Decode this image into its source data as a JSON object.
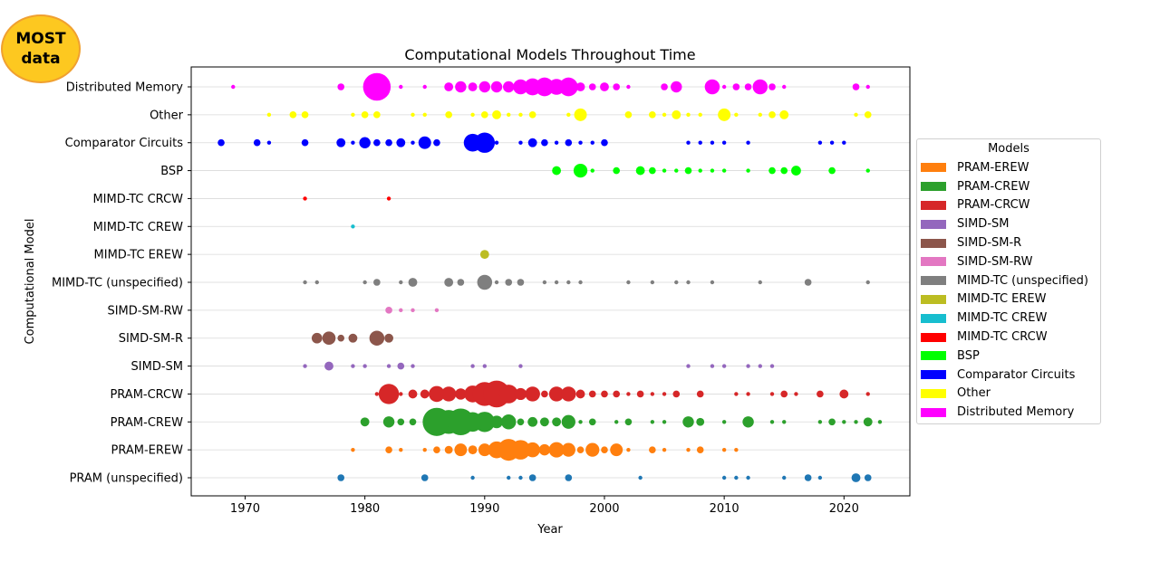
{
  "badge": {
    "line1": "MOST",
    "line2": "data"
  },
  "chart_data": {
    "type": "scatter",
    "title": "Computational Models Throughout Time",
    "xlabel": "Year",
    "ylabel": "Computational Model",
    "xlim": [
      1965.5,
      2025.5
    ],
    "xticks": [
      1970,
      1980,
      1990,
      2000,
      2010,
      2020
    ],
    "grid": "horizontal",
    "legend_title": "Models",
    "legend_position": "outside-right",
    "categories": [
      "PRAM (unspecified)",
      "PRAM-EREW",
      "PRAM-CREW",
      "PRAM-CRCW",
      "SIMD-SM",
      "SIMD-SM-R",
      "SIMD-SM-RW",
      "MIMD-TC (unspecified)",
      "MIMD-TC EREW",
      "MIMD-TC CREW",
      "MIMD-TC CRCW",
      "BSP",
      "Comparator Circuits",
      "Other",
      "Distributed Memory"
    ],
    "legend": [
      {
        "label": "PRAM-EREW",
        "color": "#ff7f0e"
      },
      {
        "label": "PRAM-CREW",
        "color": "#2ca02c"
      },
      {
        "label": "PRAM-CRCW",
        "color": "#d62728"
      },
      {
        "label": "SIMD-SM",
        "color": "#9467bd"
      },
      {
        "label": "SIMD-SM-R",
        "color": "#8c564b"
      },
      {
        "label": "SIMD-SM-RW",
        "color": "#e377c2"
      },
      {
        "label": "MIMD-TC (unspecified)",
        "color": "#7f7f7f"
      },
      {
        "label": "MIMD-TC EREW",
        "color": "#bcbd22"
      },
      {
        "label": "MIMD-TC CREW",
        "color": "#17becf"
      },
      {
        "label": "MIMD-TC CRCW",
        "color": "#ff0000"
      },
      {
        "label": "BSP",
        "color": "#00ff00"
      },
      {
        "label": "Comparator Circuits",
        "color": "#0000ff"
      },
      {
        "label": "Other",
        "color": "#ffff00"
      },
      {
        "label": "Distributed Memory",
        "color": "#ff00ff"
      }
    ],
    "series": [
      {
        "category": "PRAM (unspecified)",
        "color": "#1f77b4",
        "points": [
          [
            1978,
            3
          ],
          [
            1985,
            3
          ],
          [
            1989,
            1
          ],
          [
            1992,
            1
          ],
          [
            1993,
            1
          ],
          [
            1994,
            3
          ],
          [
            1997,
            3
          ],
          [
            2003,
            1
          ],
          [
            2010,
            1
          ],
          [
            2011,
            1
          ],
          [
            2012,
            1
          ],
          [
            2015,
            1
          ],
          [
            2017,
            3
          ],
          [
            2018,
            1
          ],
          [
            2021,
            5
          ],
          [
            2022,
            3
          ]
        ]
      },
      {
        "category": "PRAM-EREW",
        "color": "#ff7f0e",
        "points": [
          [
            1979,
            1
          ],
          [
            1982,
            3
          ],
          [
            1983,
            1
          ],
          [
            1985,
            1
          ],
          [
            1986,
            3
          ],
          [
            1987,
            4
          ],
          [
            1988,
            10
          ],
          [
            1989,
            5
          ],
          [
            1990,
            10
          ],
          [
            1991,
            18
          ],
          [
            1992,
            30
          ],
          [
            1993,
            24
          ],
          [
            1994,
            14
          ],
          [
            1995,
            8
          ],
          [
            1996,
            15
          ],
          [
            1997,
            12
          ],
          [
            1998,
            3
          ],
          [
            1999,
            12
          ],
          [
            2000,
            3
          ],
          [
            2001,
            10
          ],
          [
            2002,
            1
          ],
          [
            2004,
            3
          ],
          [
            2005,
            1
          ],
          [
            2007,
            1
          ],
          [
            2008,
            3
          ],
          [
            2010,
            1
          ],
          [
            2011,
            1
          ]
        ]
      },
      {
        "category": "PRAM-CREW",
        "color": "#2ca02c",
        "points": [
          [
            1980,
            5
          ],
          [
            1982,
            8
          ],
          [
            1983,
            3
          ],
          [
            1984,
            3
          ],
          [
            1986,
            50
          ],
          [
            1987,
            36
          ],
          [
            1988,
            45
          ],
          [
            1989,
            24
          ],
          [
            1990,
            26
          ],
          [
            1991,
            10
          ],
          [
            1992,
            14
          ],
          [
            1993,
            3
          ],
          [
            1994,
            6
          ],
          [
            1995,
            5
          ],
          [
            1996,
            5
          ],
          [
            1997,
            12
          ],
          [
            1998,
            1
          ],
          [
            1999,
            3
          ],
          [
            2001,
            1
          ],
          [
            2002,
            3
          ],
          [
            2004,
            1
          ],
          [
            2005,
            1
          ],
          [
            2007,
            8
          ],
          [
            2008,
            4
          ],
          [
            2010,
            1
          ],
          [
            2012,
            8
          ],
          [
            2014,
            1
          ],
          [
            2015,
            1
          ],
          [
            2018,
            1
          ],
          [
            2019,
            3
          ],
          [
            2020,
            1
          ],
          [
            2021,
            1
          ],
          [
            2022,
            5
          ],
          [
            2023,
            1
          ]
        ]
      },
      {
        "category": "PRAM-CRCW",
        "color": "#d62728",
        "points": [
          [
            1981,
            1
          ],
          [
            1982,
            26
          ],
          [
            1983,
            1
          ],
          [
            1984,
            5
          ],
          [
            1985,
            5
          ],
          [
            1986,
            16
          ],
          [
            1987,
            14
          ],
          [
            1988,
            8
          ],
          [
            1989,
            18
          ],
          [
            1990,
            36
          ],
          [
            1991,
            45
          ],
          [
            1992,
            22
          ],
          [
            1993,
            9
          ],
          [
            1994,
            14
          ],
          [
            1995,
            3
          ],
          [
            1996,
            14
          ],
          [
            1997,
            14
          ],
          [
            1998,
            5
          ],
          [
            1999,
            3
          ],
          [
            2000,
            3
          ],
          [
            2001,
            3
          ],
          [
            2002,
            1
          ],
          [
            2003,
            3
          ],
          [
            2004,
            1
          ],
          [
            2005,
            1
          ],
          [
            2006,
            3
          ],
          [
            2008,
            3
          ],
          [
            2011,
            1
          ],
          [
            2012,
            1
          ],
          [
            2014,
            1
          ],
          [
            2015,
            3
          ],
          [
            2016,
            1
          ],
          [
            2018,
            3
          ],
          [
            2020,
            5
          ],
          [
            2022,
            1
          ]
        ]
      },
      {
        "category": "SIMD-SM",
        "color": "#9467bd",
        "points": [
          [
            1975,
            1
          ],
          [
            1977,
            5
          ],
          [
            1979,
            1
          ],
          [
            1980,
            1
          ],
          [
            1982,
            1
          ],
          [
            1983,
            3
          ],
          [
            1984,
            1
          ],
          [
            1989,
            1
          ],
          [
            1990,
            1
          ],
          [
            1993,
            1
          ],
          [
            2007,
            1
          ],
          [
            2009,
            1
          ],
          [
            2010,
            1
          ],
          [
            2012,
            1
          ],
          [
            2013,
            1
          ],
          [
            2014,
            1
          ]
        ]
      },
      {
        "category": "SIMD-SM-R",
        "color": "#8c564b",
        "points": [
          [
            1976,
            7
          ],
          [
            1977,
            11
          ],
          [
            1978,
            3
          ],
          [
            1979,
            5
          ],
          [
            1981,
            14
          ],
          [
            1982,
            5
          ]
        ]
      },
      {
        "category": "SIMD-SM-RW",
        "color": "#e377c2",
        "points": [
          [
            1982,
            3
          ],
          [
            1983,
            1
          ],
          [
            1984,
            1
          ],
          [
            1986,
            1
          ]
        ]
      },
      {
        "category": "MIMD-TC (unspecified)",
        "color": "#7f7f7f",
        "points": [
          [
            1975,
            1
          ],
          [
            1976,
            1
          ],
          [
            1980,
            1
          ],
          [
            1981,
            3
          ],
          [
            1983,
            1
          ],
          [
            1984,
            5
          ],
          [
            1987,
            5
          ],
          [
            1988,
            3
          ],
          [
            1990,
            14
          ],
          [
            1991,
            1
          ],
          [
            1992,
            3
          ],
          [
            1993,
            3
          ],
          [
            1995,
            1
          ],
          [
            1996,
            1
          ],
          [
            1997,
            1
          ],
          [
            1998,
            1
          ],
          [
            2002,
            1
          ],
          [
            2004,
            1
          ],
          [
            2006,
            1
          ],
          [
            2007,
            1
          ],
          [
            2009,
            1
          ],
          [
            2013,
            1
          ],
          [
            2017,
            3
          ],
          [
            2022,
            1
          ]
        ]
      },
      {
        "category": "MIMD-TC EREW",
        "color": "#bcbd22",
        "points": [
          [
            1990,
            5
          ]
        ]
      },
      {
        "category": "MIMD-TC CREW",
        "color": "#17becf",
        "points": [
          [
            1979,
            1
          ]
        ]
      },
      {
        "category": "MIMD-TC CRCW",
        "color": "#ff0000",
        "points": [
          [
            1975,
            1
          ],
          [
            1982,
            1
          ]
        ]
      },
      {
        "category": "BSP",
        "color": "#00ff00",
        "points": [
          [
            1996,
            5
          ],
          [
            1998,
            12
          ],
          [
            1999,
            1
          ],
          [
            2001,
            3
          ],
          [
            2003,
            5
          ],
          [
            2004,
            3
          ],
          [
            2005,
            1
          ],
          [
            2006,
            1
          ],
          [
            2007,
            3
          ],
          [
            2008,
            1
          ],
          [
            2009,
            1
          ],
          [
            2010,
            1
          ],
          [
            2012,
            1
          ],
          [
            2014,
            3
          ],
          [
            2015,
            3
          ],
          [
            2016,
            6
          ],
          [
            2019,
            3
          ],
          [
            2022,
            1
          ]
        ]
      },
      {
        "category": "Comparator Circuits",
        "color": "#0000ff",
        "points": [
          [
            1968,
            3
          ],
          [
            1971,
            3
          ],
          [
            1972,
            1
          ],
          [
            1975,
            3
          ],
          [
            1978,
            5
          ],
          [
            1979,
            1
          ],
          [
            1980,
            8
          ],
          [
            1981,
            3
          ],
          [
            1982,
            3
          ],
          [
            1983,
            5
          ],
          [
            1984,
            1
          ],
          [
            1985,
            10
          ],
          [
            1986,
            3
          ],
          [
            1989,
            20
          ],
          [
            1990,
            26
          ],
          [
            1991,
            1
          ],
          [
            1993,
            1
          ],
          [
            1994,
            5
          ],
          [
            1995,
            3
          ],
          [
            1996,
            1
          ],
          [
            1997,
            3
          ],
          [
            1998,
            1
          ],
          [
            1999,
            1
          ],
          [
            2000,
            3
          ],
          [
            2007,
            1
          ],
          [
            2008,
            1
          ],
          [
            2009,
            1
          ],
          [
            2010,
            1
          ],
          [
            2012,
            1
          ],
          [
            2018,
            1
          ],
          [
            2019,
            1
          ],
          [
            2020,
            1
          ]
        ]
      },
      {
        "category": "Other",
        "color": "#ffff00",
        "points": [
          [
            1972,
            1
          ],
          [
            1974,
            3
          ],
          [
            1975,
            3
          ],
          [
            1979,
            1
          ],
          [
            1980,
            3
          ],
          [
            1981,
            3
          ],
          [
            1984,
            1
          ],
          [
            1985,
            1
          ],
          [
            1987,
            3
          ],
          [
            1989,
            1
          ],
          [
            1990,
            3
          ],
          [
            1991,
            5
          ],
          [
            1992,
            1
          ],
          [
            1993,
            1
          ],
          [
            1994,
            3
          ],
          [
            1997,
            1
          ],
          [
            1998,
            10
          ],
          [
            2002,
            3
          ],
          [
            2004,
            3
          ],
          [
            2005,
            1
          ],
          [
            2006,
            5
          ],
          [
            2007,
            1
          ],
          [
            2008,
            1
          ],
          [
            2010,
            10
          ],
          [
            2011,
            1
          ],
          [
            2013,
            1
          ],
          [
            2014,
            3
          ],
          [
            2015,
            5
          ],
          [
            2021,
            1
          ],
          [
            2022,
            3
          ]
        ]
      },
      {
        "category": "Distributed Memory",
        "color": "#ff00ff",
        "points": [
          [
            1969,
            1
          ],
          [
            1978,
            3
          ],
          [
            1981,
            48
          ],
          [
            1983,
            1
          ],
          [
            1985,
            1
          ],
          [
            1987,
            5
          ],
          [
            1988,
            8
          ],
          [
            1989,
            5
          ],
          [
            1990,
            8
          ],
          [
            1991,
            8
          ],
          [
            1992,
            8
          ],
          [
            1993,
            14
          ],
          [
            1994,
            18
          ],
          [
            1995,
            22
          ],
          [
            1996,
            16
          ],
          [
            1997,
            22
          ],
          [
            1998,
            5
          ],
          [
            1999,
            3
          ],
          [
            2000,
            5
          ],
          [
            2001,
            3
          ],
          [
            2002,
            1
          ],
          [
            2005,
            3
          ],
          [
            2006,
            8
          ],
          [
            2009,
            14
          ],
          [
            2010,
            1
          ],
          [
            2011,
            3
          ],
          [
            2012,
            3
          ],
          [
            2013,
            14
          ],
          [
            2014,
            3
          ],
          [
            2015,
            1
          ],
          [
            2021,
            3
          ],
          [
            2022,
            1
          ]
        ]
      }
    ]
  }
}
